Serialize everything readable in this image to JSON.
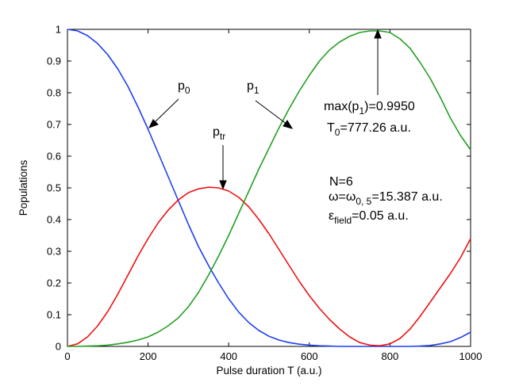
{
  "chart_data": {
    "type": "line",
    "title": "",
    "xlabel": "Pulse duration T (a.u.)",
    "ylabel": "Populations",
    "xlim": [
      0,
      1000
    ],
    "ylim": [
      0,
      1
    ],
    "x_ticks": [
      "0",
      "200",
      "400",
      "600",
      "800",
      "1000"
    ],
    "y_ticks": [
      "0",
      "0.1",
      "0.2",
      "0.3",
      "0.4",
      "0.5",
      "0.6",
      "0.7",
      "0.8",
      "0.9",
      "1"
    ],
    "grid": false,
    "legend": "none",
    "x": [
      0,
      25,
      50,
      75,
      100,
      125,
      150,
      175,
      200,
      225,
      250,
      275,
      300,
      325,
      350,
      375,
      400,
      425,
      450,
      475,
      500,
      525,
      550,
      575,
      600,
      625,
      650,
      675,
      700,
      725,
      750,
      775,
      800,
      825,
      850,
      875,
      900,
      925,
      950,
      975,
      1000
    ],
    "series": [
      {
        "name": "p0",
        "color": "#1f3ff0",
        "values": [
          1.0,
          0.995,
          0.98,
          0.955,
          0.92,
          0.875,
          0.82,
          0.755,
          0.685,
          0.61,
          0.535,
          0.46,
          0.385,
          0.315,
          0.255,
          0.2,
          0.15,
          0.108,
          0.075,
          0.05,
          0.032,
          0.02,
          0.012,
          0.007,
          0.004,
          0.002,
          0.001,
          0.0,
          0.0,
          0.0,
          0.0,
          0.0,
          0.0,
          0.0,
          0.0,
          0.001,
          0.003,
          0.008,
          0.015,
          0.028,
          0.045
        ]
      },
      {
        "name": "ptr",
        "color": "#ee1111",
        "values": [
          0.0,
          0.008,
          0.03,
          0.065,
          0.11,
          0.165,
          0.225,
          0.285,
          0.34,
          0.39,
          0.43,
          0.462,
          0.485,
          0.497,
          0.502,
          0.5,
          0.49,
          0.47,
          0.44,
          0.4,
          0.355,
          0.305,
          0.255,
          0.205,
          0.16,
          0.12,
          0.085,
          0.055,
          0.03,
          0.012,
          0.004,
          0.002,
          0.008,
          0.025,
          0.055,
          0.095,
          0.14,
          0.185,
          0.23,
          0.28,
          0.34
        ]
      },
      {
        "name": "p1",
        "color": "#22a022",
        "values": [
          0.0,
          0.0,
          0.001,
          0.002,
          0.004,
          0.008,
          0.013,
          0.02,
          0.03,
          0.045,
          0.065,
          0.09,
          0.125,
          0.17,
          0.225,
          0.285,
          0.35,
          0.42,
          0.49,
          0.56,
          0.625,
          0.69,
          0.75,
          0.805,
          0.855,
          0.9,
          0.935,
          0.96,
          0.978,
          0.99,
          0.995,
          0.995,
          0.99,
          0.97,
          0.94,
          0.895,
          0.845,
          0.785,
          0.72,
          0.665,
          0.62
        ]
      }
    ],
    "annotations": {
      "p0_main": "p",
      "p0_sub": "0",
      "p1_main": "p",
      "p1_sub": "1",
      "ptr_main": "p",
      "ptr_sub": "tr",
      "max_pre": "max(p",
      "max_sub": "1",
      "max_post": ")=0.9950",
      "t0_pre": "T",
      "t0_sub": "0",
      "t0_post": "=777.26 a.u.",
      "n_line": "N=6",
      "omega_pre": "ω=ω",
      "omega_sub": "0, 5",
      "omega_post": "=15.387 a.u.",
      "eps_pre": "ε",
      "eps_sub": "field",
      "eps_post": "=0.05 a.u."
    }
  }
}
